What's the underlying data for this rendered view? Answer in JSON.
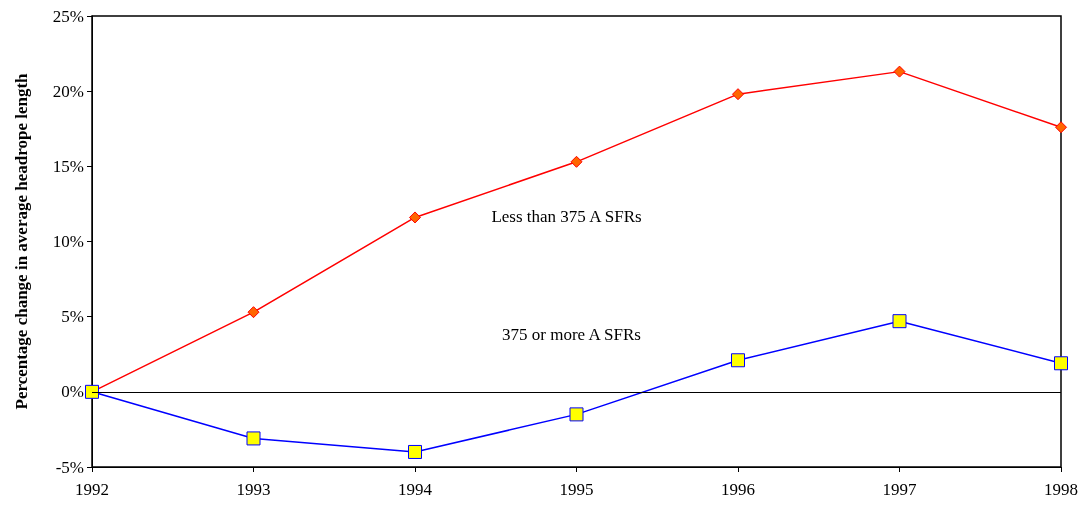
{
  "chart_data": {
    "type": "line",
    "ylabel": "Percentage change in average headrope length",
    "x": [
      1992,
      1993,
      1994,
      1995,
      1996,
      1997,
      1998
    ],
    "series": [
      {
        "name": "Less than 375 A SFRs",
        "color": "#ff0000",
        "marker": "diamond",
        "values": [
          0,
          5.3,
          11.6,
          15.3,
          19.8,
          21.3,
          17.6
        ]
      },
      {
        "name": "375 or more A SFRs",
        "color": "#0000ff",
        "marker": "square",
        "values": [
          0,
          -3.1,
          -4.0,
          -1.5,
          2.1,
          4.7,
          1.9
        ]
      }
    ],
    "xlim": [
      1992,
      1998
    ],
    "xticks": [
      1992,
      1993,
      1994,
      1995,
      1996,
      1997,
      1998
    ],
    "ylim": [
      -5,
      25
    ],
    "yticks": [
      {
        "value": -5,
        "label": "-5%"
      },
      {
        "value": 0,
        "label": "0%"
      },
      {
        "value": 5,
        "label": "5%"
      },
      {
        "value": 10,
        "label": "10%"
      },
      {
        "value": 15,
        "label": "15%"
      },
      {
        "value": 20,
        "label": "20%"
      },
      {
        "value": 25,
        "label": "25%"
      }
    ],
    "ref_lines": [
      {
        "axis": "y",
        "value": 0,
        "color": "#000000"
      }
    ],
    "grid": false,
    "legend": false
  }
}
